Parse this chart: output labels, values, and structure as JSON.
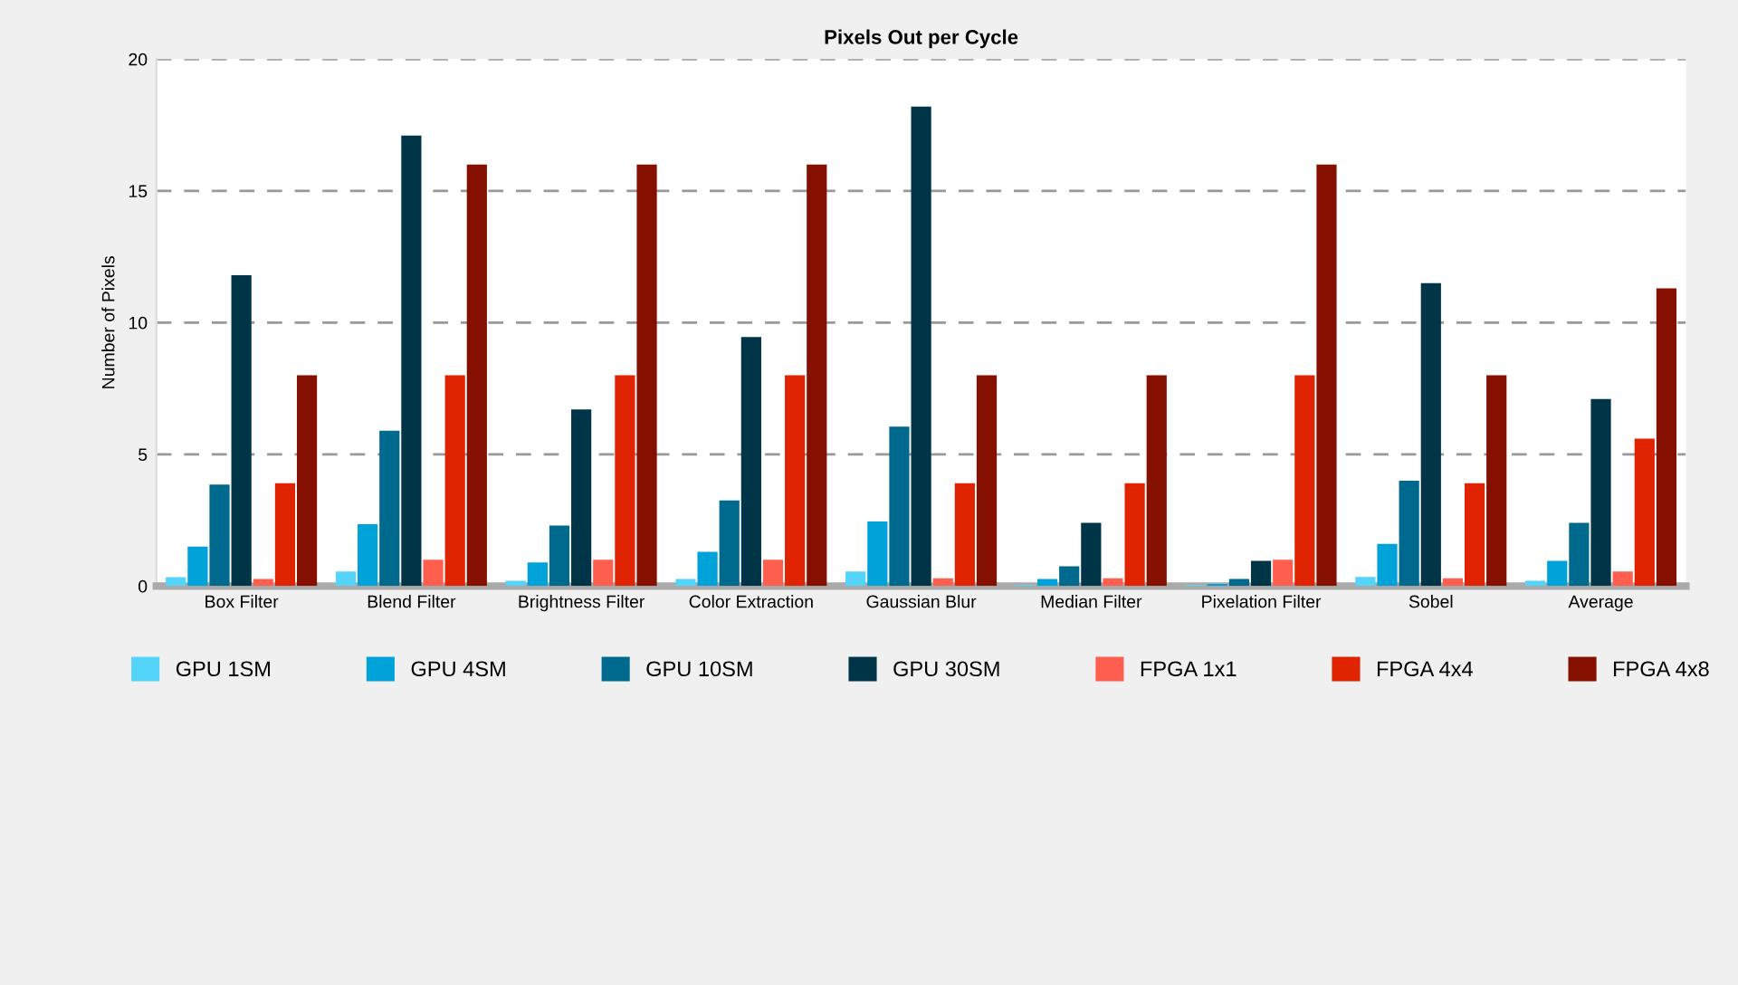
{
  "chart_data": {
    "type": "bar",
    "title": "Pixels Out per Cycle",
    "ylabel": "Number of Pixels",
    "categories": [
      "Box Filter",
      "Blend Filter",
      "Brightness Filter",
      "Color Extraction",
      "Gaussian Blur",
      "Median Filter",
      "Pixelation Filter",
      "Sobel",
      "Average"
    ],
    "series": [
      {
        "name": "GPU 1SM",
        "color": "#55d4fa",
        "values": [
          0.34,
          0.55,
          0.2,
          0.27,
          0.55,
          0.05,
          0.05,
          0.35,
          0.2
        ]
      },
      {
        "name": "GPU 4SM",
        "color": "#00a3d9",
        "values": [
          1.5,
          2.35,
          0.9,
          1.3,
          2.45,
          0.27,
          0.08,
          1.6,
          0.96
        ]
      },
      {
        "name": "GPU 10SM",
        "color": "#006a8e",
        "values": [
          3.85,
          5.9,
          2.3,
          3.25,
          6.05,
          0.75,
          0.27,
          4,
          2.4
        ]
      },
      {
        "name": "GPU 30SM",
        "color": "#003548",
        "values": [
          11.8,
          17.1,
          6.7,
          9.45,
          18.2,
          2.4,
          0.96,
          11.5,
          7.1
        ]
      },
      {
        "name": "FPGA 1x1",
        "color": "#ff5f4f",
        "values": [
          0.27,
          1,
          1,
          1,
          0.3,
          0.3,
          1,
          0.3,
          0.55
        ]
      },
      {
        "name": "FPGA 4x4",
        "color": "#e02300",
        "values": [
          3.9,
          8,
          8,
          8,
          3.9,
          3.9,
          8,
          3.9,
          5.6
        ]
      },
      {
        "name": "FPGA 4x8",
        "color": "#851000",
        "values": [
          8,
          16,
          16,
          16,
          8,
          8,
          16,
          8,
          11.3
        ]
      }
    ],
    "ylim": [
      0,
      20
    ],
    "yticks": [
      0,
      5,
      10,
      15,
      20
    ],
    "grid": "y",
    "legend": "bottom"
  }
}
